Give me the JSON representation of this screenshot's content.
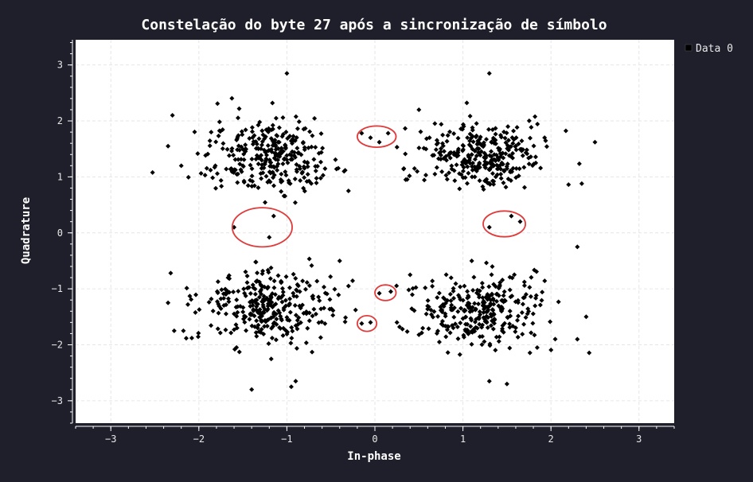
{
  "chart_data": {
    "type": "scatter",
    "title": "Constelação do byte 27 após a sincronização de símbolo",
    "xlabel": "In-phase",
    "ylabel": "Quadrature",
    "xlim": [
      -3.4,
      3.4
    ],
    "ylim": [
      -3.4,
      3.45
    ],
    "xticks": [
      -3,
      -2,
      -1,
      0,
      1,
      2,
      3
    ],
    "yticks": [
      -3,
      -2,
      -1,
      0,
      1,
      2,
      3
    ],
    "xtick_labels": [
      "−3",
      "−2",
      "−1",
      "0",
      "1",
      "2",
      "3"
    ],
    "ytick_labels": [
      "−3",
      "−2",
      "−1",
      "0",
      "1",
      "2",
      "3"
    ],
    "grid": true,
    "legend": {
      "placement": "outside-top-right",
      "entries": [
        "Data 0"
      ]
    },
    "series": [
      {
        "name": "Data 0",
        "marker": "diamond",
        "color": "#000000",
        "clusters": [
          {
            "center": [
              -1.2,
              1.4
            ],
            "spread": [
              0.34,
              0.32
            ],
            "count": 300
          },
          {
            "center": [
              1.2,
              1.4
            ],
            "spread": [
              0.34,
              0.32
            ],
            "count": 300
          },
          {
            "center": [
              -1.2,
              -1.35
            ],
            "spread": [
              0.36,
              0.32
            ],
            "count": 310
          },
          {
            "center": [
              1.2,
              -1.35
            ],
            "spread": [
              0.34,
              0.32
            ],
            "count": 300
          }
        ],
        "points": [
          [
            -2.3,
            2.1
          ],
          [
            -2.35,
            1.55
          ],
          [
            -2.2,
            1.2
          ],
          [
            -1.0,
            2.85
          ],
          [
            0.5,
            2.2
          ],
          [
            1.3,
            2.85
          ],
          [
            2.5,
            1.62
          ],
          [
            2.35,
            0.88
          ],
          [
            -1.6,
            0.1
          ],
          [
            -1.15,
            0.3
          ],
          [
            -1.2,
            -0.08
          ],
          [
            -2.32,
            -0.72
          ],
          [
            -2.35,
            -1.25
          ],
          [
            -2.28,
            -1.75
          ],
          [
            -1.4,
            -2.8
          ],
          [
            -0.95,
            -2.75
          ],
          [
            -0.9,
            -2.65
          ],
          [
            2.3,
            -0.25
          ],
          [
            2.3,
            -1.9
          ],
          [
            2.4,
            -1.5
          ],
          [
            1.3,
            -2.65
          ],
          [
            1.5,
            -2.7
          ],
          [
            -0.15,
            1.78
          ],
          [
            0.15,
            1.78
          ],
          [
            0.05,
            1.62
          ],
          [
            -0.05,
            1.7
          ],
          [
            1.3,
            0.1
          ],
          [
            1.55,
            0.3
          ],
          [
            1.65,
            0.2
          ],
          [
            0.18,
            -1.05
          ],
          [
            0.05,
            -1.08
          ],
          [
            -0.15,
            -1.62
          ],
          [
            -0.05,
            -1.6
          ],
          [
            0.25,
            -1.6
          ],
          [
            0.28,
            -1.68
          ],
          [
            0.5,
            -1.82
          ],
          [
            -0.3,
            0.75
          ],
          [
            -0.4,
            -0.5
          ],
          [
            0.35,
            0.95
          ],
          [
            -0.35,
            1.1
          ],
          [
            0.45,
            1.15
          ],
          [
            0.4,
            -0.75
          ],
          [
            -0.3,
            -0.95
          ]
        ]
      }
    ],
    "annotations": [
      {
        "shape": "ellipse",
        "center": [
          0.02,
          1.72
        ],
        "radii": [
          0.22,
          0.19
        ],
        "color": "#e03a3a"
      },
      {
        "shape": "ellipse",
        "center": [
          -1.28,
          0.1
        ],
        "radii": [
          0.34,
          0.35
        ],
        "color": "#e03a3a"
      },
      {
        "shape": "ellipse",
        "center": [
          1.47,
          0.16
        ],
        "radii": [
          0.24,
          0.23
        ],
        "color": "#e03a3a"
      },
      {
        "shape": "ellipse",
        "center": [
          0.12,
          -1.07
        ],
        "radii": [
          0.12,
          0.14
        ],
        "color": "#e03a3a"
      },
      {
        "shape": "ellipse",
        "center": [
          -0.09,
          -1.62
        ],
        "radii": [
          0.11,
          0.14
        ],
        "color": "#e03a3a"
      }
    ],
    "colors": {
      "background": "#1e1f2b",
      "plot_background": "#ffffff",
      "grid": "#e6e6e6",
      "axis": "#ffffff",
      "annotation": "#e03a3a"
    }
  }
}
